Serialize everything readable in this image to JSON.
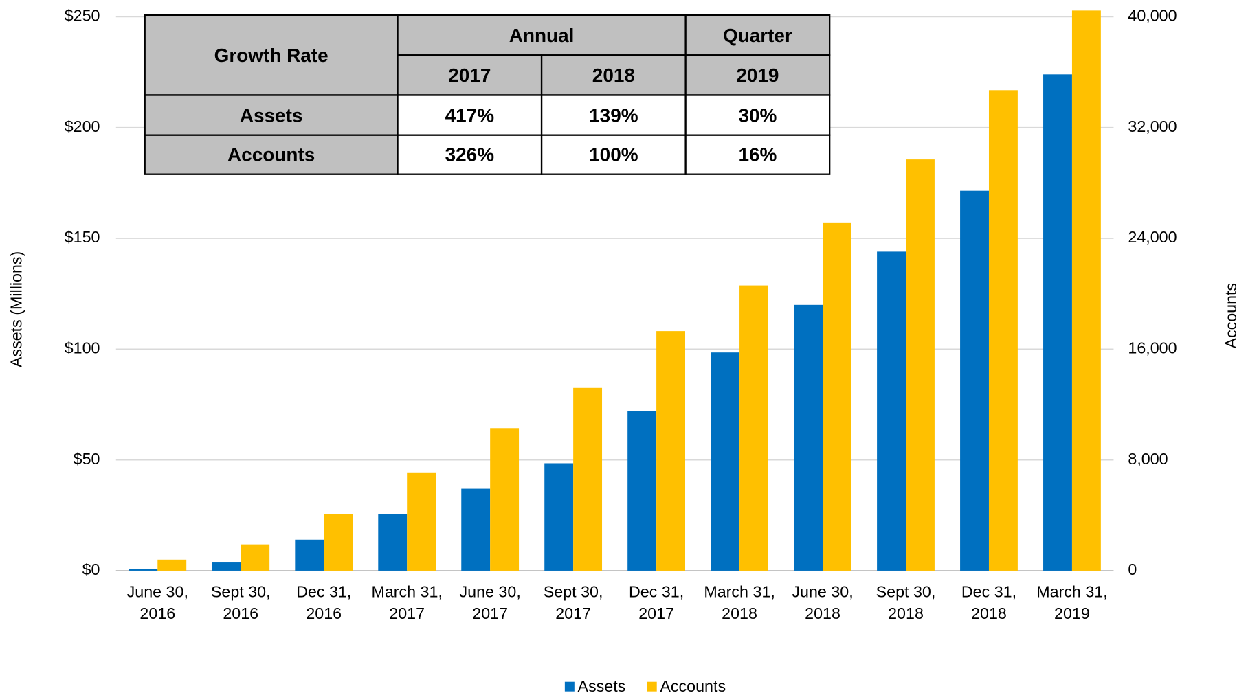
{
  "chart_data": {
    "type": "bar",
    "categories": [
      "June 30, 2016",
      "Sept 30, 2016",
      "Dec 31, 2016",
      "March 31, 2017",
      "June 30, 2017",
      "Sept 30, 2017",
      "Dec 31, 2017",
      "March 31, 2018",
      "June 30, 2018",
      "Sept 30, 2018",
      "Dec 31, 2018",
      "March 31, 2019"
    ],
    "series": [
      {
        "name": "Assets",
        "color": "#0070c0",
        "values": [
          0.8,
          4,
          14,
          25.5,
          37,
          48.5,
          72,
          98.5,
          120,
          144,
          171.5,
          224
        ]
      },
      {
        "name": "Accounts",
        "color": "#ffc000",
        "axis": "y2",
        "values": [
          800,
          1900,
          4070,
          7100,
          10300,
          13200,
          17300,
          20600,
          25150,
          29700,
          34700,
          40450
        ]
      }
    ],
    "y_label": "Assets (Millions)",
    "y2_label": "Accounts",
    "ylim": [
      0,
      250
    ],
    "yticks": [
      {
        "value": 0,
        "label": "$0"
      },
      {
        "value": 50,
        "label": "$50"
      },
      {
        "value": 100,
        "label": "$100"
      },
      {
        "value": 150,
        "label": "$150"
      },
      {
        "value": 200,
        "label": "$200"
      },
      {
        "value": 250,
        "label": "$250"
      }
    ],
    "y2lim": [
      0,
      40000
    ],
    "y2ticks": [
      0,
      {
        "value": 8000,
        "label": "8,000"
      },
      {
        "value": 16000,
        "label": "16,000"
      },
      {
        "value": 24000,
        "label": "24,000"
      },
      {
        "value": 32000,
        "label": "32,000"
      },
      {
        "value": 40000,
        "label": "40,000"
      }
    ],
    "grid": true,
    "legend": "bottom"
  },
  "table": {
    "corner": "Growth Rate",
    "groups": [
      "Annual",
      "Quarter"
    ],
    "years": [
      "2017",
      "2018",
      "2019"
    ],
    "rows": [
      [
        "Assets",
        "417%",
        "139%",
        "30%"
      ],
      [
        "Accounts",
        "326%",
        "100%",
        "16%"
      ]
    ]
  }
}
